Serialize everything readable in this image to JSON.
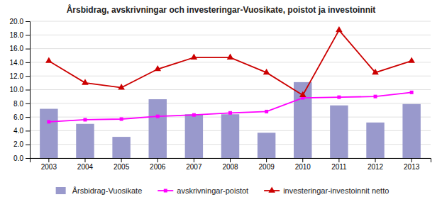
{
  "chart_data": {
    "type": "bar",
    "title": "Årsbidrag, avskrivningar och investeringar-Vuosikate, poistot ja investoinnit",
    "categories": [
      "2003",
      "2004",
      "2005",
      "2006",
      "2007",
      "2008",
      "2009",
      "2010",
      "2011",
      "2012",
      "2013"
    ],
    "series": [
      {
        "name": "Årsbidrag-Vuosikate",
        "type": "bar",
        "color": "#9999cc",
        "values": [
          7.2,
          5.0,
          3.1,
          8.6,
          6.4,
          6.4,
          3.7,
          11.1,
          7.7,
          5.2,
          7.9
        ]
      },
      {
        "name": "avskrivningar-poistot",
        "type": "line",
        "color": "#ff00ff",
        "marker": "square",
        "values": [
          5.3,
          5.6,
          5.7,
          6.1,
          6.3,
          6.6,
          6.8,
          8.8,
          8.9,
          9.0,
          9.6
        ]
      },
      {
        "name": "investeringar-investoinnit netto",
        "type": "line",
        "color": "#cc0000",
        "marker": "triangle",
        "values": [
          14.2,
          11.0,
          10.3,
          13.0,
          14.7,
          14.7,
          12.5,
          9.2,
          18.7,
          12.5,
          14.2
        ]
      }
    ],
    "ylim": [
      0,
      20
    ],
    "yticks": [
      {
        "value": 0,
        "label": "0.0"
      },
      {
        "value": 2,
        "label": "2.0"
      },
      {
        "value": 4,
        "label": "4.0"
      },
      {
        "value": 6,
        "label": "6.0"
      },
      {
        "value": 8,
        "label": "8.0"
      },
      {
        "value": 10,
        "label": "10.0"
      },
      {
        "value": 12,
        "label": "12.0"
      },
      {
        "value": 14,
        "label": "14.0"
      },
      {
        "value": 16,
        "label": "16.0"
      },
      {
        "value": 18,
        "label": "18.0"
      },
      {
        "value": 20,
        "label": "20.0"
      }
    ],
    "grid": true,
    "legend": "bottom"
  }
}
